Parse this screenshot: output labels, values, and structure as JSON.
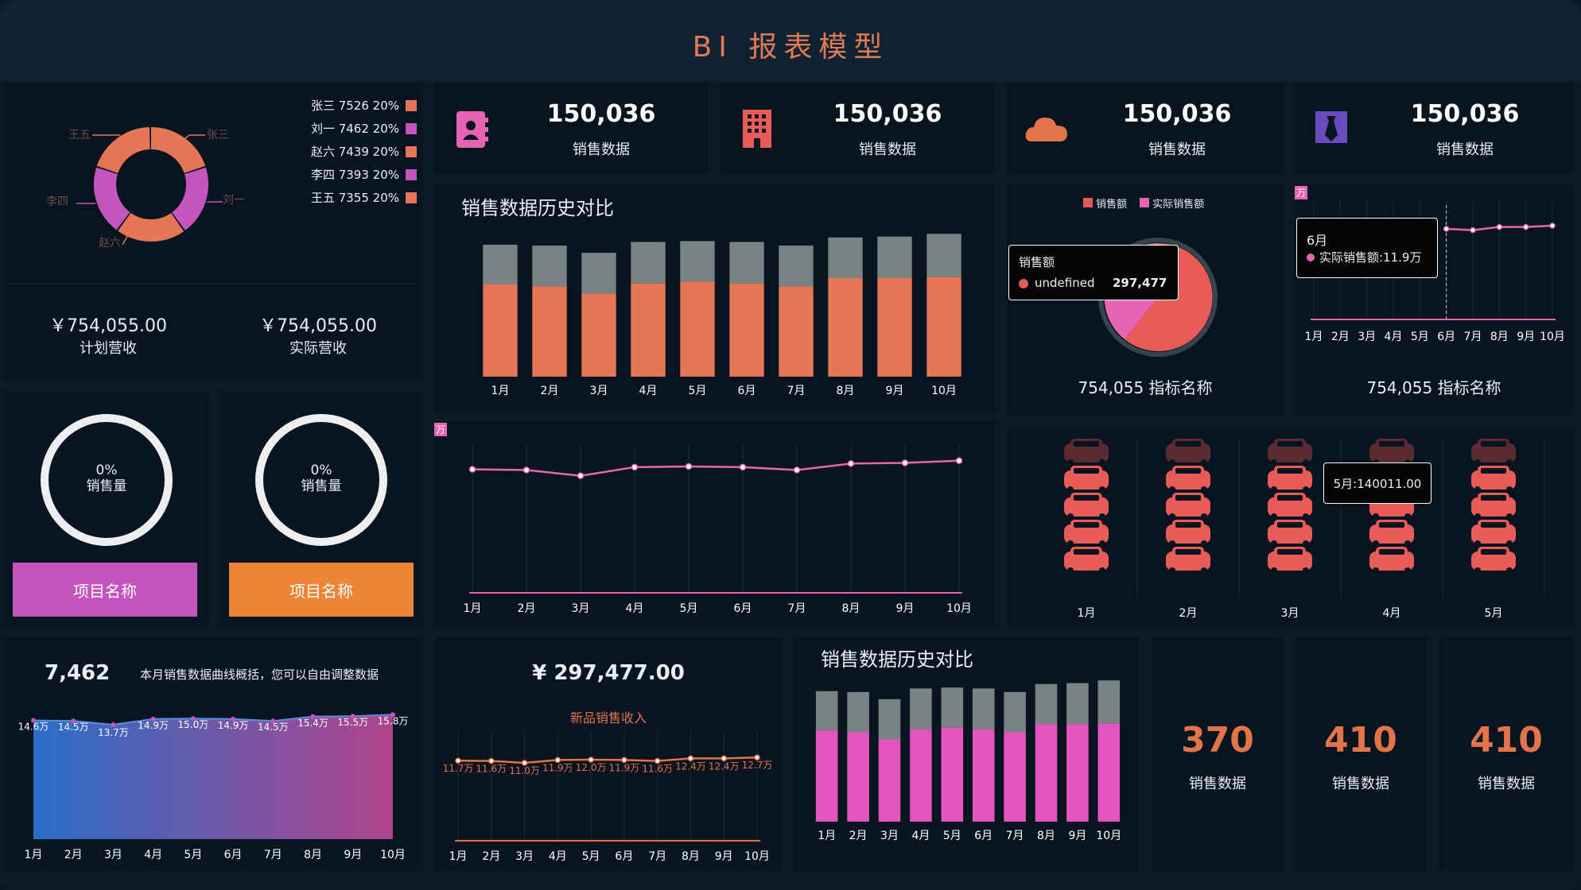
{
  "header": {
    "title": "BI 报表模型"
  },
  "donut": {
    "legend": [
      {
        "text": "张三 7526 20%",
        "color": "#e77656"
      },
      {
        "text": "刘一 7462 20%",
        "color": "#c654bf"
      },
      {
        "text": "赵六 7439 20%",
        "color": "#e77656"
      },
      {
        "text": "李四 7393 20%",
        "color": "#c654bf"
      },
      {
        "text": "王五 7355 20%",
        "color": "#e77656"
      }
    ],
    "slice_labels": [
      "王五",
      "张三",
      "刘一",
      "赵六",
      "李四"
    ],
    "values": [
      7526,
      7462,
      7439,
      7393,
      7355
    ]
  },
  "revenue": {
    "plan_value": "￥754,055.00",
    "plan_label": "计划营收",
    "actual_value": "￥754,055.00",
    "actual_label": "实际营收"
  },
  "rings": [
    {
      "percent": "0%",
      "label": "销售量",
      "button": "项目名称",
      "button_color": "#c654bf"
    },
    {
      "percent": "0%",
      "label": "销售量",
      "button": "项目名称",
      "button_color": "#ee8436"
    }
  ],
  "kpis": [
    {
      "value": "150,036",
      "label": "销售数据",
      "icon": "contact-book-icon"
    },
    {
      "value": "150,036",
      "label": "销售数据",
      "icon": "building-icon"
    },
    {
      "value": "150,036",
      "label": "销售数据",
      "icon": "cloud-icon"
    },
    {
      "value": "150,036",
      "label": "销售数据",
      "icon": "tie-icon"
    }
  ],
  "history_chart": {
    "title": "销售数据历史对比",
    "months": [
      "1月",
      "2月",
      "3月",
      "4月",
      "5月",
      "6月",
      "7月",
      "8月",
      "9月",
      "10月"
    ]
  },
  "pie_panel": {
    "legend": [
      "销售额",
      "实际销售额"
    ],
    "tooltip_title": "销售额",
    "tooltip_name": "undefined",
    "tooltip_value": "297,477",
    "caption": "754,055 指标名称"
  },
  "small_line_panel": {
    "unit": "万",
    "tooltip_month": "6月",
    "tooltip_text": "实际销售额:11.9万",
    "months": [
      "1月",
      "2月",
      "3月",
      "4月",
      "5月",
      "6月",
      "7月",
      "8月",
      "9月",
      "10月"
    ],
    "caption": "754,055 指标名称"
  },
  "big_line": {
    "unit": "万",
    "months": [
      "1月",
      "2月",
      "3月",
      "4月",
      "5月",
      "6月",
      "7月",
      "8月",
      "9月",
      "10月"
    ]
  },
  "cars": {
    "months": [
      "1月",
      "2月",
      "3月",
      "4月",
      "5月"
    ],
    "tooltip": "5月:140011.00"
  },
  "area_panel": {
    "number": "7,462",
    "note": "本月销售数据曲线概括，您可以自由调整数据",
    "labels": [
      "14.6万",
      "14.5万",
      "13.7万",
      "14.9万",
      "15.0万",
      "14.9万",
      "14.5万",
      "15.4万",
      "15.5万",
      "15.8万"
    ],
    "months": [
      "1月",
      "2月",
      "3月",
      "4月",
      "5月",
      "6月",
      "7月",
      "8月",
      "9月",
      "10月"
    ]
  },
  "new_income": {
    "value": "¥ 297,477.00",
    "label": "新品销售收入",
    "labels": [
      "11.7万",
      "11.6万",
      "11.0万",
      "11.9万",
      "12.0万",
      "11.9万",
      "11.6万",
      "12.4万",
      "12.4万",
      "12.7万"
    ],
    "months": [
      "1月",
      "2月",
      "3月",
      "4月",
      "5月",
      "6月",
      "7月",
      "8月",
      "9月",
      "10月"
    ]
  },
  "history_chart2": {
    "title": "销售数据历史对比",
    "months": [
      "1月",
      "2月",
      "3月",
      "4月",
      "5月",
      "6月",
      "7月",
      "8月",
      "9月",
      "10月"
    ]
  },
  "stats": [
    {
      "value": "370",
      "label": "销售数据"
    },
    {
      "value": "410",
      "label": "销售数据"
    },
    {
      "value": "410",
      "label": "销售数据"
    }
  ],
  "chart_data": [
    {
      "type": "bar",
      "title": "销售数据历史对比",
      "categories": [
        "1月",
        "2月",
        "3月",
        "4月",
        "5月",
        "6月",
        "7月",
        "8月",
        "9月",
        "10月"
      ],
      "series": [
        {
          "values": [
            10.2,
            10.0,
            9.2,
            10.3,
            10.5,
            10.3,
            10.0,
            10.9,
            10.9,
            11.0
          ]
        },
        {
          "values": [
            14.6,
            14.5,
            13.7,
            14.9,
            15.0,
            14.9,
            14.5,
            15.4,
            15.5,
            15.8
          ]
        }
      ]
    },
    {
      "type": "line",
      "categories": [
        "1月",
        "2月",
        "3月",
        "4月",
        "5月",
        "6月",
        "7月",
        "8月",
        "9月",
        "10月"
      ],
      "series": [
        {
          "values": [
            14.6,
            14.5,
            13.7,
            14.9,
            15.0,
            14.9,
            14.5,
            15.4,
            15.5,
            15.8
          ]
        }
      ]
    },
    {
      "type": "pie",
      "categories": [
        "销售额",
        "实际销售额"
      ],
      "values": [
        297477,
        160000
      ]
    },
    {
      "type": "line",
      "categories": [
        "1月",
        "2月",
        "3月",
        "4月",
        "5月",
        "6月",
        "7月",
        "8月",
        "9月",
        "10月"
      ],
      "series": [
        {
          "name": "实际销售额",
          "values": [
            0,
            0,
            0,
            0,
            0,
            11.9,
            11.7,
            12.2,
            12.2,
            12.4
          ]
        }
      ]
    },
    {
      "type": "area",
      "categories": [
        "1月",
        "2月",
        "3月",
        "4月",
        "5月",
        "6月",
        "7月",
        "8月",
        "9月",
        "10月"
      ],
      "series": [
        {
          "values": [
            14.6,
            14.5,
            13.7,
            14.9,
            15.0,
            14.9,
            14.5,
            15.4,
            15.5,
            15.8
          ]
        }
      ]
    },
    {
      "type": "line",
      "title": "新品销售收入",
      "categories": [
        "1月",
        "2月",
        "3月",
        "4月",
        "5月",
        "6月",
        "7月",
        "8月",
        "9月",
        "10月"
      ],
      "series": [
        {
          "values": [
            11.7,
            11.6,
            11.0,
            11.9,
            12.0,
            11.9,
            11.6,
            12.4,
            12.4,
            12.7
          ]
        }
      ]
    },
    {
      "type": "bar",
      "title": "销售数据历史对比",
      "categories": [
        "1月",
        "2月",
        "3月",
        "4月",
        "5月",
        "6月",
        "7月",
        "8月",
        "9月",
        "10月"
      ],
      "series": [
        {
          "values": [
            10.2,
            10.0,
            9.2,
            10.3,
            10.5,
            10.3,
            10.0,
            10.9,
            10.9,
            11.0
          ]
        },
        {
          "values": [
            14.6,
            14.5,
            13.7,
            14.9,
            15.0,
            14.9,
            14.5,
            15.4,
            15.5,
            15.8
          ]
        }
      ]
    },
    {
      "type": "bar",
      "categories": [
        "1月",
        "2月",
        "3月",
        "4月",
        "5月"
      ],
      "values": [
        0.9,
        0.85,
        0.8,
        0.9,
        0.88
      ]
    }
  ]
}
